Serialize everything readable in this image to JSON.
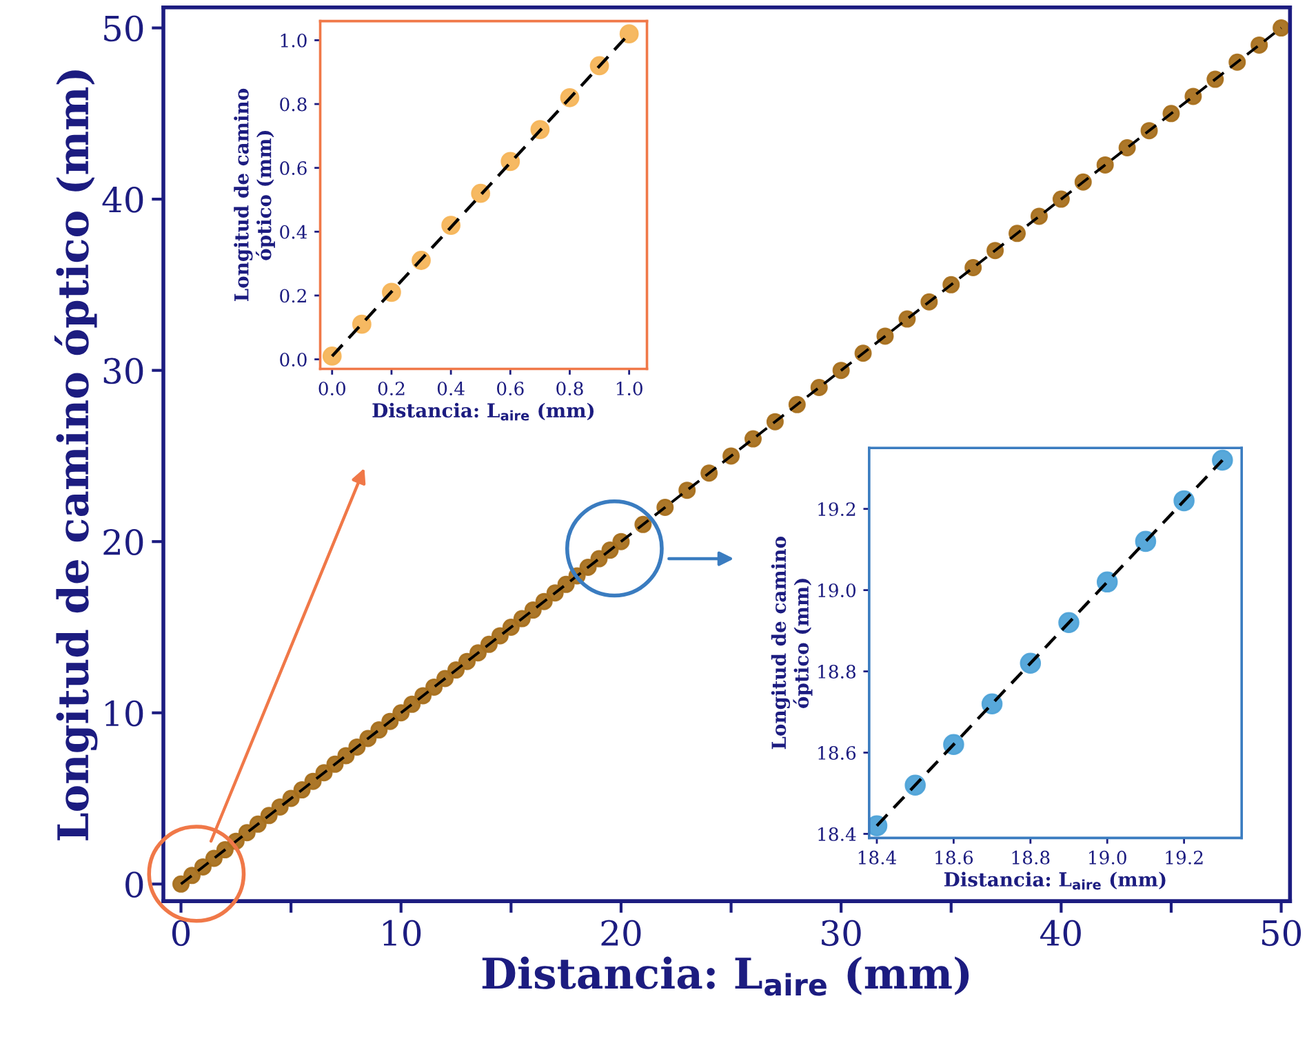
{
  "chart_data": [
    {
      "type": "scatter",
      "xlabel": "Distancia: L$_{aire}$ (mm)",
      "ylabel": "Longitud de camino óptico (mm)",
      "xlim": [
        -0.8,
        50.4
      ],
      "ylim": [
        -1,
        51.2
      ],
      "xticks": [
        0,
        {
          "value": 5,
          "label": null
        },
        10,
        {
          "value": 15,
          "label": null
        },
        20,
        {
          "value": 25,
          "label": null
        },
        30,
        {
          "value": 35,
          "label": null
        },
        40,
        {
          "value": 45,
          "label": null
        },
        50
      ],
      "yticks": [
        0,
        10,
        20,
        30,
        40,
        50
      ],
      "series": [
        {
          "color": "#a8701e",
          "marker": "circle",
          "x": [
            0,
            0.5,
            1,
            1.5,
            2,
            2.5,
            3,
            3.5,
            4,
            4.5,
            5,
            5.5,
            6,
            6.5,
            7,
            7.5,
            8,
            8.5,
            9,
            9.5,
            10,
            10.5,
            11,
            11.5,
            12,
            12.5,
            13,
            13.5,
            14,
            14.5,
            15,
            15.5,
            16,
            16.5,
            17,
            17.5,
            18,
            18.5,
            19,
            19.5,
            20,
            21,
            22,
            23,
            24,
            25,
            26,
            27,
            28,
            29,
            30,
            31,
            32,
            33,
            34,
            35,
            36,
            37,
            38,
            39,
            40,
            41,
            42,
            43,
            44,
            45,
            46,
            47,
            48,
            49,
            50
          ],
          "values": [
            0,
            0.5,
            1,
            1.5,
            2,
            2.5,
            3,
            3.5,
            4,
            4.5,
            5,
            5.5,
            6,
            6.5,
            7,
            7.5,
            8,
            8.5,
            9,
            9.5,
            10,
            10.5,
            11,
            11.5,
            12,
            12.5,
            13,
            13.5,
            14,
            14.5,
            15,
            15.5,
            16,
            16.5,
            17,
            17.5,
            18,
            18.5,
            19,
            19.5,
            20,
            21,
            22,
            23,
            24,
            25,
            26,
            27,
            28,
            29,
            30,
            31,
            32,
            33,
            34,
            35,
            36,
            37,
            38,
            39,
            40,
            41,
            42,
            43,
            44,
            45,
            46,
            47,
            48,
            49,
            50
          ]
        },
        {
          "type": "line",
          "line_style": "dashed",
          "color": "#000000",
          "x": [
            0,
            50
          ],
          "values": [
            0,
            50
          ]
        }
      ]
    },
    {
      "type": "scatter",
      "xlabel": "Distancia: L$_{aire}$ (mm)",
      "ylabel": "Longitud de camino\nóptico (mm)",
      "xlim": [
        -0.04,
        1.06
      ],
      "ylim": [
        -0.03,
        1.06
      ],
      "xticks": [
        {
          "value": 0,
          "label": "0.0"
        },
        0.2,
        0.4,
        0.6,
        0.8,
        {
          "value": 1,
          "label": "1.0"
        }
      ],
      "yticks": [
        {
          "value": 0,
          "label": "0.0"
        },
        0.2,
        0.4,
        0.6,
        0.8,
        {
          "value": 1,
          "label": "1.0"
        }
      ],
      "series": [
        {
          "color": "#f5b55a",
          "marker": "circle",
          "x": [
            0,
            0.1,
            0.2,
            0.3,
            0.4,
            0.5,
            0.6,
            0.7,
            0.8,
            0.9,
            1.0
          ],
          "values": [
            0.01,
            0.11,
            0.21,
            0.31,
            0.42,
            0.52,
            0.62,
            0.72,
            0.82,
            0.92,
            1.02
          ]
        },
        {
          "type": "line",
          "line_style": "dashed",
          "color": "#000000",
          "x": [
            0,
            1.0
          ],
          "values": [
            0.01,
            1.02
          ]
        }
      ]
    },
    {
      "type": "scatter",
      "xlabel": "Distancia: L$_{aire}$ (mm)",
      "ylabel": "Longitud de camino\nóptico (mm)",
      "xlim": [
        18.38,
        19.35
      ],
      "ylim": [
        18.39,
        19.35
      ],
      "xticks": [
        18.4,
        18.6,
        18.8,
        {
          "value": 19,
          "label": "19.0"
        },
        19.2
      ],
      "yticks": [
        18.4,
        18.6,
        18.8,
        {
          "value": 19,
          "label": "19.0"
        },
        19.2
      ],
      "series": [
        {
          "color": "#4fa3d8",
          "marker": "circle",
          "x": [
            18.4,
            18.5,
            18.6,
            18.7,
            18.8,
            18.9,
            19.0,
            19.1,
            19.2,
            19.3
          ],
          "values": [
            18.42,
            18.52,
            18.62,
            18.72,
            18.82,
            18.92,
            19.02,
            19.12,
            19.22,
            19.32
          ]
        },
        {
          "type": "line",
          "line_style": "dashed",
          "color": "#000000",
          "x": [
            18.4,
            19.3
          ],
          "values": [
            18.42,
            19.32
          ]
        }
      ]
    }
  ]
}
